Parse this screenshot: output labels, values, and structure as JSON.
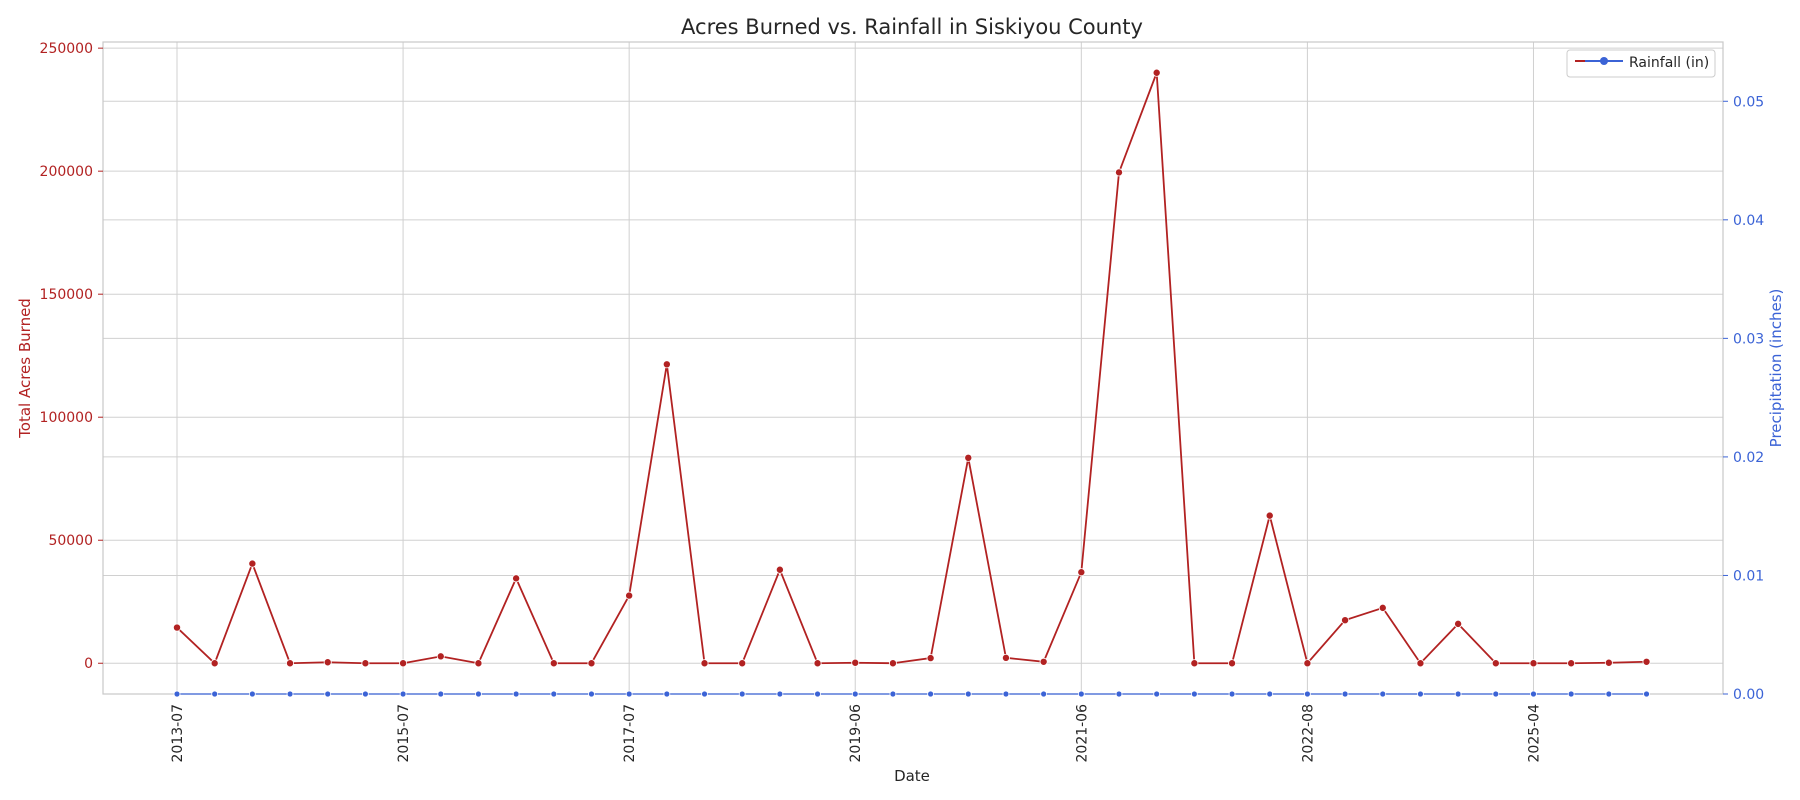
{
  "chart_data": {
    "type": "line",
    "title": "Acres Burned vs. Rainfall in Siskiyou County",
    "xlabel": "Date",
    "ylabel_left": "Total Acres Burned",
    "ylabel_right": "Precipitation (inches)",
    "colors": {
      "acres": "#b22222",
      "rain": "#3b63d6",
      "grid": "#d0d0d0",
      "frame": "#c8c8c8"
    },
    "x_tick_labels": [
      "2013-07",
      "2015-07",
      "2017-07",
      "2019-06",
      "2021-06",
      "2022-08",
      "2025-04"
    ],
    "x_tick_index": [
      0,
      6,
      12,
      18,
      24,
      30,
      36
    ],
    "ylim_left": [
      -12500,
      252500
    ],
    "yticks_left": [
      "0",
      "50000",
      "100000",
      "150000",
      "200000",
      "250000"
    ],
    "yticks_left_values": [
      0,
      50000,
      100000,
      150000,
      200000,
      250000
    ],
    "ylim_right": [
      0,
      0.055
    ],
    "yticks_right": [
      "0.00",
      "0.01",
      "0.02",
      "0.03",
      "0.04",
      "0.05"
    ],
    "yticks_right_values": [
      0,
      0.01,
      0.02,
      0.03,
      0.04,
      0.05
    ],
    "grid": true,
    "legend": {
      "position": "top-right",
      "label": "Rainfall (in)"
    },
    "series": [
      {
        "axis": "left",
        "values": [
          14500,
          0,
          40500,
          0,
          400,
          0,
          0,
          2800,
          0,
          34500,
          0,
          0,
          27500,
          121500,
          0,
          0,
          38000,
          0,
          200,
          0,
          2100,
          83500,
          2200,
          600,
          37000,
          199500,
          240000,
          0,
          0,
          60000,
          0,
          17500,
          22500,
          0,
          16000,
          0,
          0,
          0,
          200,
          600
        ]
      },
      {
        "name": "Rainfall (in)",
        "axis": "right",
        "values": [
          0,
          0,
          0,
          0,
          0,
          0,
          0,
          0,
          0,
          0,
          0,
          0,
          0,
          0,
          0,
          0,
          0,
          0,
          0,
          0,
          0,
          0,
          0,
          0,
          0,
          0,
          0,
          0,
          0,
          0,
          0,
          0,
          0,
          0,
          0,
          0,
          0,
          0,
          0,
          0
        ]
      }
    ]
  }
}
